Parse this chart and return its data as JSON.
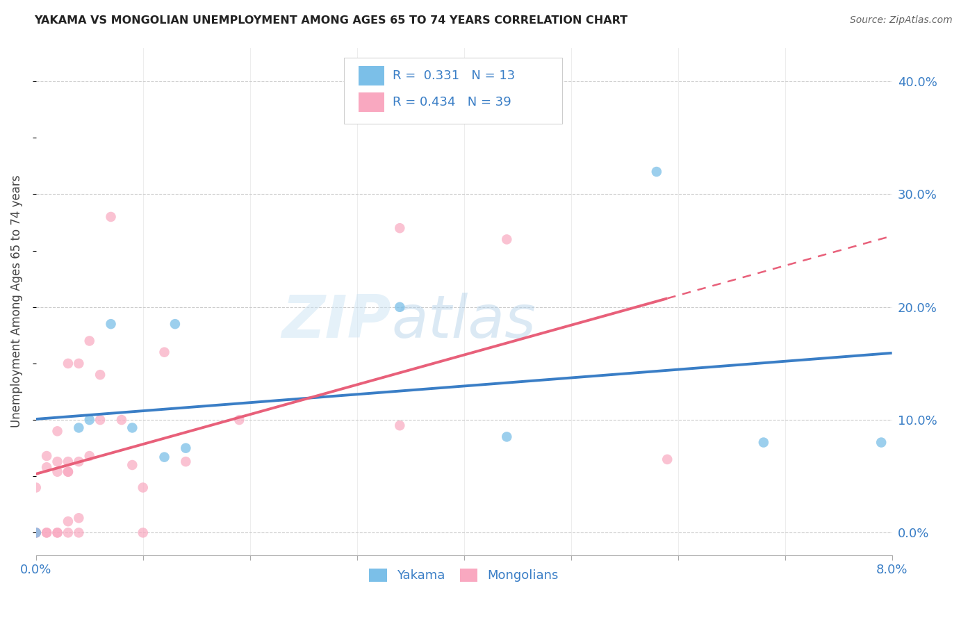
{
  "title": "YAKAMA VS MONGOLIAN UNEMPLOYMENT AMONG AGES 65 TO 74 YEARS CORRELATION CHART",
  "source": "Source: ZipAtlas.com",
  "ylabel": "Unemployment Among Ages 65 to 74 years",
  "xlim": [
    0.0,
    0.08
  ],
  "ylim": [
    -0.02,
    0.43
  ],
  "yticks": [
    0.0,
    0.1,
    0.2,
    0.3,
    0.4
  ],
  "background_color": "#ffffff",
  "grid_color": "#cccccc",
  "yakama_color": "#7BBFE8",
  "mongolian_color": "#F9A8C0",
  "yakama_line_color": "#3A7EC6",
  "mongolian_line_color": "#E8607A",
  "R_yakama": 0.331,
  "N_yakama": 13,
  "R_mongolian": 0.434,
  "N_mongolian": 39,
  "legend_label_yakama": "Yakama",
  "legend_label_mongolian": "Mongolians",
  "watermark_zip": "ZIP",
  "watermark_atlas": "atlas",
  "yakama_x": [
    0.0,
    0.004,
    0.005,
    0.007,
    0.009,
    0.012,
    0.013,
    0.014,
    0.034,
    0.044,
    0.058,
    0.068,
    0.079
  ],
  "yakama_y": [
    0.0,
    0.093,
    0.1,
    0.185,
    0.093,
    0.067,
    0.185,
    0.075,
    0.2,
    0.085,
    0.32,
    0.08,
    0.08
  ],
  "mongolian_x": [
    0.0,
    0.0,
    0.0,
    0.0,
    0.001,
    0.001,
    0.001,
    0.001,
    0.002,
    0.002,
    0.002,
    0.002,
    0.002,
    0.003,
    0.003,
    0.003,
    0.003,
    0.003,
    0.003,
    0.004,
    0.004,
    0.004,
    0.004,
    0.005,
    0.005,
    0.006,
    0.006,
    0.007,
    0.008,
    0.009,
    0.01,
    0.01,
    0.012,
    0.014,
    0.019,
    0.034,
    0.034,
    0.044,
    0.059
  ],
  "mongolian_y": [
    0.0,
    0.0,
    0.0,
    0.04,
    0.0,
    0.0,
    0.058,
    0.068,
    0.0,
    0.0,
    0.054,
    0.063,
    0.09,
    0.0,
    0.01,
    0.054,
    0.054,
    0.063,
    0.15,
    0.0,
    0.013,
    0.063,
    0.15,
    0.068,
    0.17,
    0.1,
    0.14,
    0.28,
    0.1,
    0.06,
    0.0,
    0.04,
    0.16,
    0.063,
    0.1,
    0.095,
    0.27,
    0.26,
    0.065
  ]
}
